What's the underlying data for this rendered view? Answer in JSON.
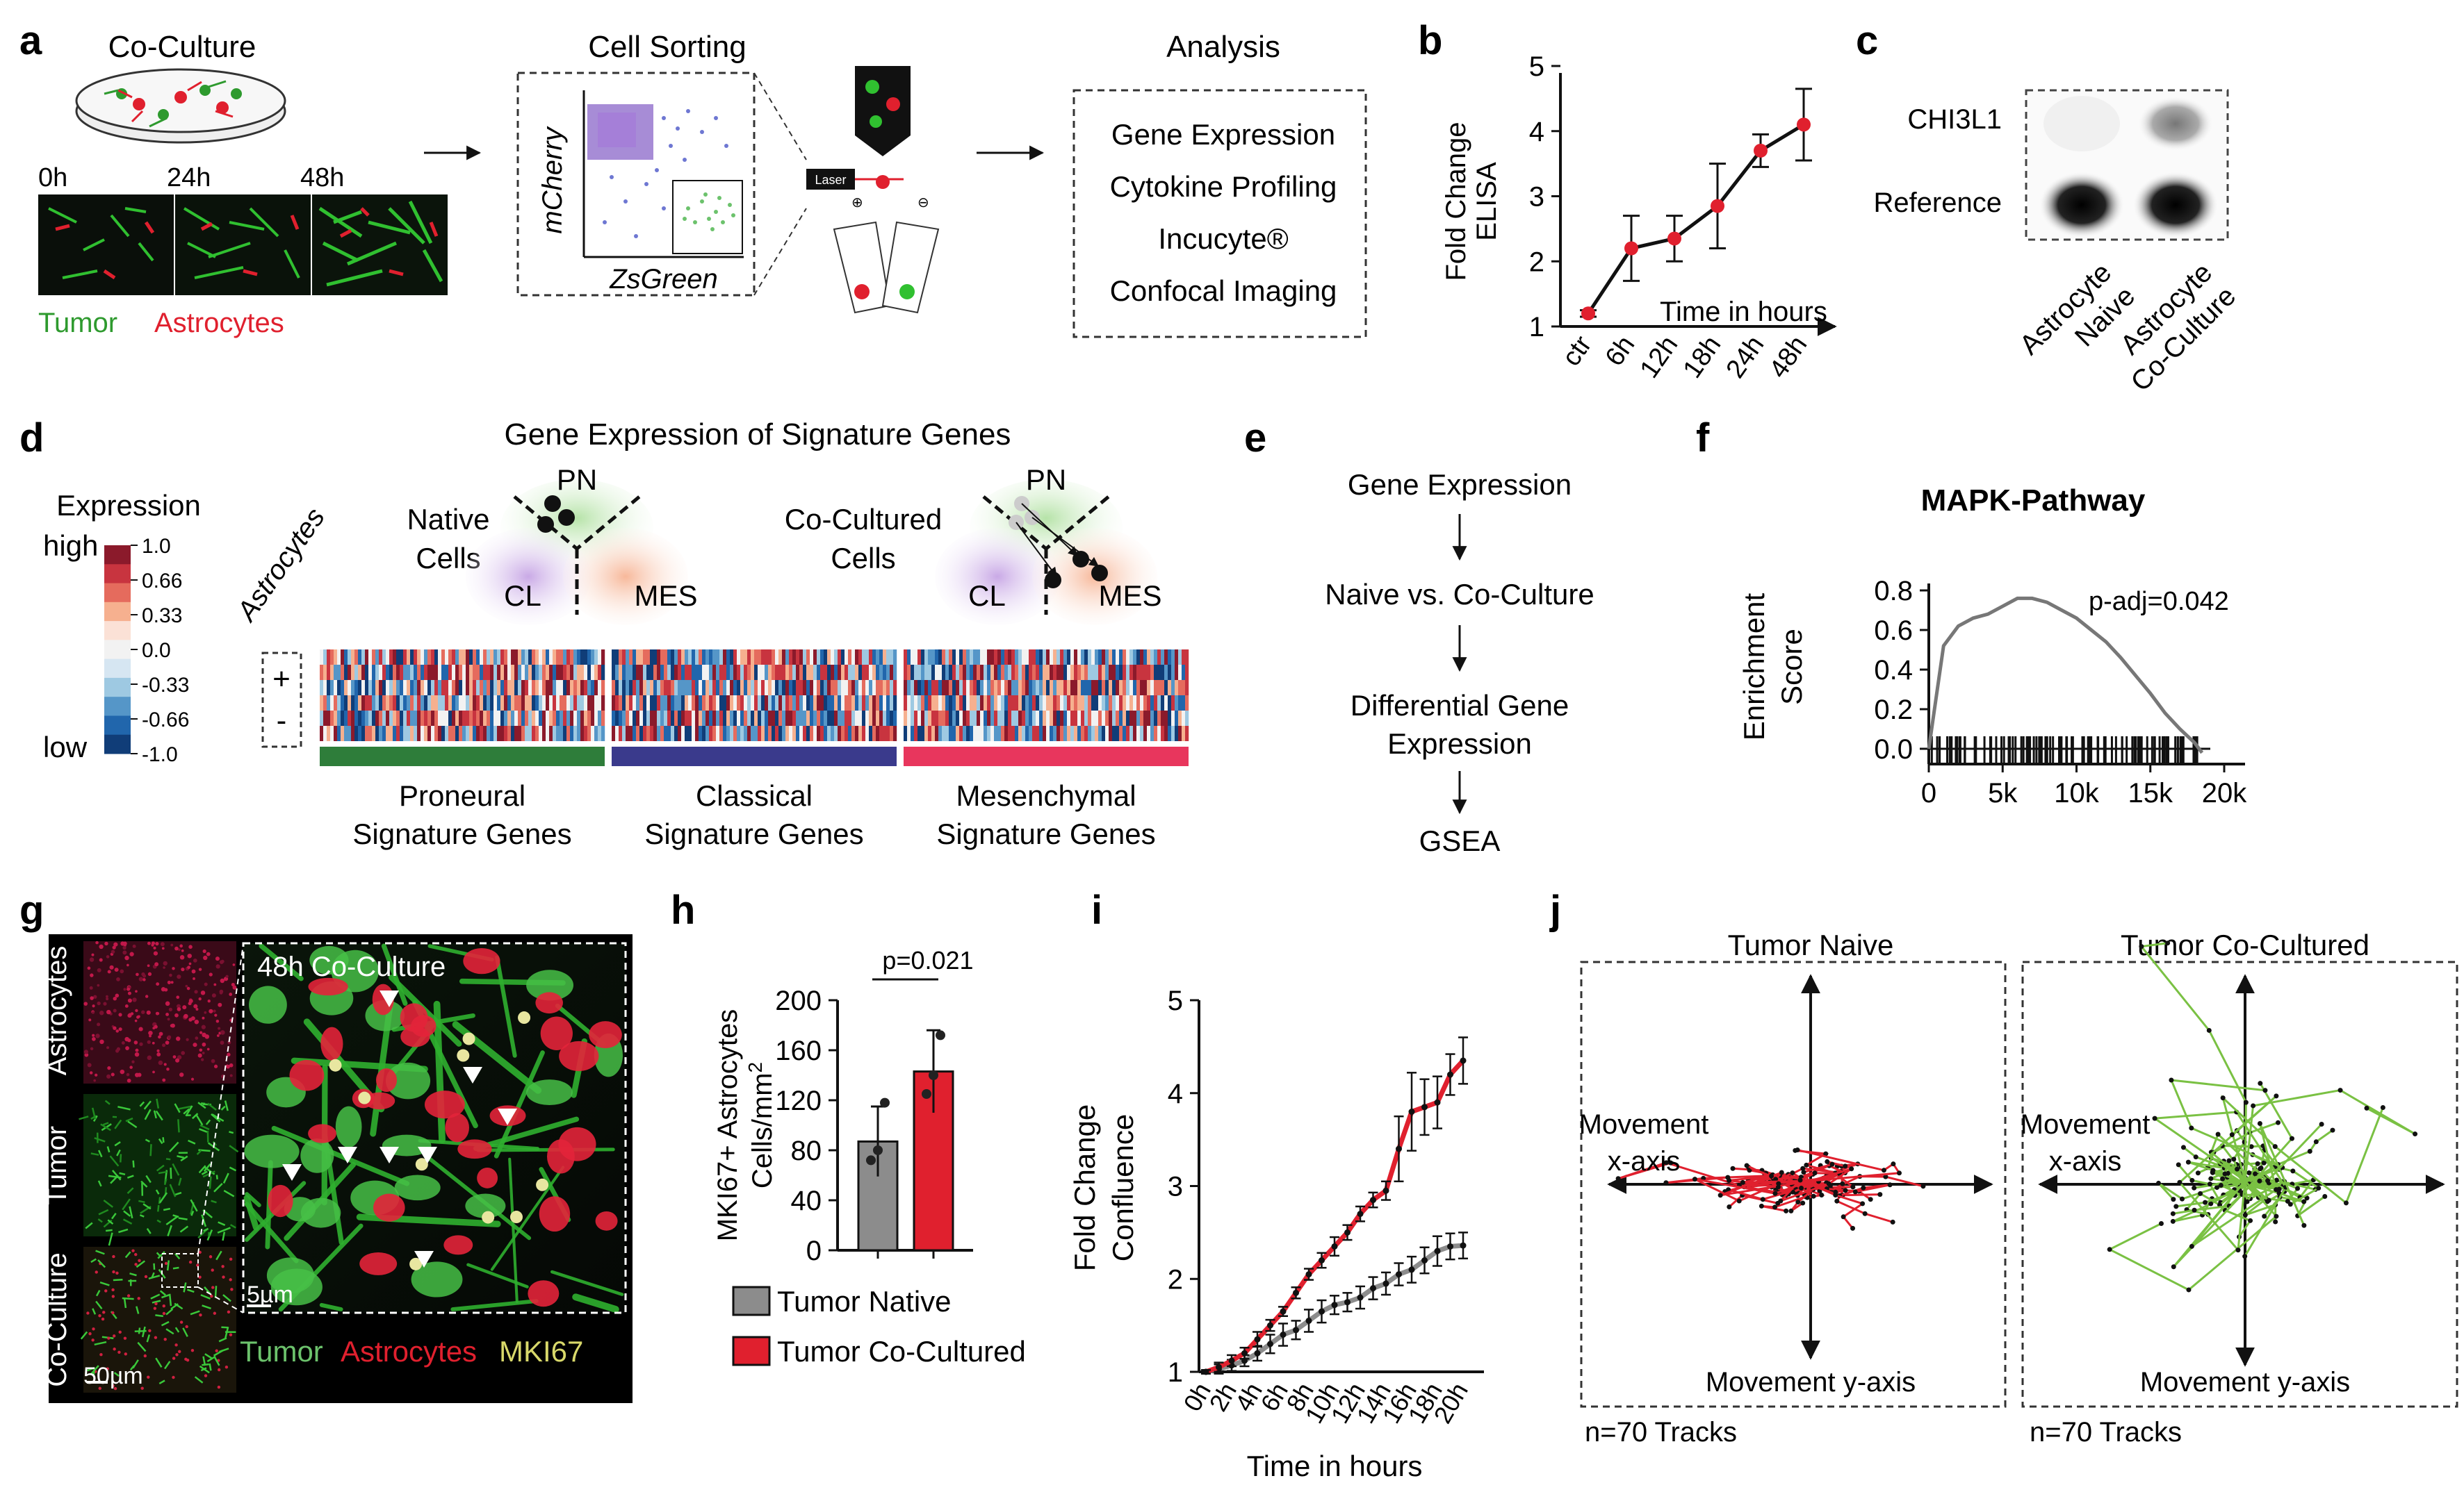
{
  "panel_letters": [
    "a",
    "b",
    "c",
    "d",
    "e",
    "f",
    "g",
    "h",
    "i",
    "j"
  ],
  "panel_a": {
    "coculture_label": "Co-Culture",
    "timepoints": [
      "0h",
      "24h",
      "48h"
    ],
    "legend_tumor": "Tumor",
    "legend_astro": "Astrocytes",
    "sorting_title": "Cell Sorting",
    "facs_y": "mCherry",
    "facs_x": "ZsGreen",
    "laser_label": "Laser",
    "analysis_title": "Analysis",
    "analysis_items": [
      "Gene Expression",
      "Cytokine Profiling",
      "Incucyte®",
      "Confocal Imaging"
    ]
  },
  "panel_b": {
    "ylabel_line1": "Fold Change",
    "ylabel_line2": "ELISA",
    "xlabel": "Time in hours",
    "y_ticks": [
      "1",
      "2",
      "3",
      "4",
      "5"
    ],
    "x_ticks": [
      "ctr",
      "6h",
      "12h",
      "18h",
      "24h",
      "48h"
    ]
  },
  "panel_c": {
    "row_labels": [
      "CHI3L1",
      "Reference"
    ],
    "col_labels_1": [
      "Astrocyte",
      "Naive"
    ],
    "col_labels_2": [
      "Astrocyte",
      "Co-Culture"
    ]
  },
  "panel_d": {
    "title": "Gene Expression of Signature Genes",
    "legend_title": "Expression",
    "legend_high": "high",
    "legend_low": "low",
    "legend_ticks": [
      "1.0",
      "0.66",
      "0.33",
      "0.0",
      "-0.33",
      "-0.66",
      "-1.0"
    ],
    "legend_colors": [
      "#8b1a2b",
      "#c8343f",
      "#e56b5d",
      "#f6b08f",
      "#fbe1d6",
      "#f2f2f2",
      "#d6e6f2",
      "#9ec9e2",
      "#5596c8",
      "#2166ac",
      "#103d78"
    ],
    "astro_label": "Astrocytes",
    "plus": "+",
    "minus": "-",
    "native_l1": "Native",
    "native_l2": "Cells",
    "cocult_l1": "Co-Cultured",
    "cocult_l2": "Cells",
    "pn": "PN",
    "cl": "CL",
    "mes": "MES",
    "groups": [
      {
        "l1": "Proneural",
        "l2": "Signature Genes",
        "color": "#2e7d3a"
      },
      {
        "l1": "Classical",
        "l2": "Signature Genes",
        "color": "#3a3a8c"
      },
      {
        "l1": "Mesenchymal",
        "l2": "Signature Genes",
        "color": "#e8365d"
      }
    ]
  },
  "panel_e": {
    "steps": [
      "Gene Expression",
      "Naive vs. Co-Culture",
      "Differential Gene",
      "Expression",
      "GSEA"
    ]
  },
  "panel_f": {
    "title": "MAPK-Pathway",
    "ylabel_line1": "Enrichment",
    "ylabel_line2": "Score",
    "annotation": "p-adj=0.042",
    "y_ticks": [
      "0.8",
      "0.6",
      "0.4",
      "0.2",
      "0.0"
    ],
    "x_ticks": [
      "0",
      "5k",
      "10k",
      "15k",
      "20k"
    ]
  },
  "panel_g": {
    "rows": [
      "Astrocytes",
      "Tumor",
      "Co-Culture"
    ],
    "inset_label": "48h Co-Culture",
    "scale_inset": "5µm",
    "scale_main": "50µm",
    "legend": [
      "Tumor",
      "Astrocytes",
      "MKI67"
    ]
  },
  "panel_h": {
    "ylabel_line1": "MKI67+ Astrocytes",
    "ylabel_line2": "Cells/mm",
    "ylabel_sup": "2",
    "pvalue": "p=0.021",
    "y_ticks": [
      "0",
      "40",
      "80",
      "120",
      "160",
      "200"
    ],
    "legend": [
      "Tumor Native",
      "Tumor Co-Cultured"
    ]
  },
  "panel_i": {
    "ylabel_line1": "Fold Change",
    "ylabel_line2": "Confluence",
    "xlabel": "Time in hours",
    "y_ticks": [
      "1",
      "2",
      "3",
      "4",
      "5"
    ],
    "x_ticks": [
      "0h",
      "2h",
      "4h",
      "6h",
      "8h",
      "10h",
      "12h",
      "14h",
      "16h",
      "18h",
      "20h"
    ]
  },
  "panel_j": {
    "titles": [
      "Tumor Naive",
      "Tumor Co-Cultured"
    ],
    "x_axis_l1": "Movement",
    "x_axis_l2": "x-axis",
    "y_axis": "Movement y-axis",
    "tracks": "n=70 Tracks"
  },
  "colors": {
    "green": "#2e9a2e",
    "red": "#e0202e",
    "track_green": "#7ac143",
    "gray": "#8c8c8c"
  },
  "chart_data": [
    {
      "type": "line",
      "panel": "b",
      "x": [
        "ctr",
        "6h",
        "12h",
        "18h",
        "24h",
        "48h"
      ],
      "series": [
        {
          "values": [
            1.2,
            2.2,
            2.35,
            2.85,
            3.7,
            4.1
          ],
          "errors": [
            0.05,
            0.5,
            0.35,
            0.65,
            0.25,
            0.55
          ]
        }
      ],
      "ylim": [
        1,
        5
      ]
    },
    {
      "type": "line",
      "panel": "f",
      "x": [
        0,
        1000,
        2000,
        3000,
        4000,
        5000,
        6000,
        7000,
        8000,
        9000,
        10000,
        11000,
        12000,
        13000,
        14000,
        15000,
        16000,
        17000,
        18000,
        18500
      ],
      "series": [
        {
          "values": [
            0.0,
            0.52,
            0.62,
            0.66,
            0.68,
            0.72,
            0.76,
            0.76,
            0.74,
            0.7,
            0.66,
            0.6,
            0.54,
            0.46,
            0.37,
            0.28,
            0.18,
            0.1,
            0.03,
            -0.02
          ]
        }
      ],
      "ylim": [
        0,
        0.8
      ],
      "xlim": [
        0,
        20000
      ]
    },
    {
      "type": "bar",
      "panel": "h",
      "categories": [
        "Tumor Native",
        "Tumor Co-Cultured"
      ],
      "values": [
        87,
        143
      ],
      "errors": [
        28,
        33
      ],
      "points": [
        [
          72,
          80,
          118
        ],
        [
          125,
          140,
          172
        ]
      ],
      "ylim": [
        0,
        200
      ]
    },
    {
      "type": "line",
      "panel": "i",
      "x": [
        "0h",
        "1h",
        "2h",
        "3h",
        "4h",
        "5h",
        "6h",
        "7h",
        "8h",
        "9h",
        "10h",
        "11h",
        "12h",
        "13h",
        "14h",
        "15h",
        "16h",
        "17h",
        "18h",
        "19h",
        "20h"
      ],
      "series": [
        {
          "name": "Tumor Native",
          "values": [
            1.0,
            1.03,
            1.07,
            1.12,
            1.2,
            1.3,
            1.4,
            1.45,
            1.55,
            1.65,
            1.72,
            1.75,
            1.8,
            1.9,
            1.95,
            2.05,
            2.1,
            2.2,
            2.3,
            2.35,
            2.36
          ],
          "errors": [
            0.02,
            0.05,
            0.06,
            0.06,
            0.08,
            0.1,
            0.12,
            0.1,
            0.12,
            0.12,
            0.1,
            0.1,
            0.12,
            0.12,
            0.12,
            0.12,
            0.14,
            0.14,
            0.16,
            0.14,
            0.14
          ]
        },
        {
          "name": "Tumor Co-Cultured",
          "values": [
            1.0,
            1.05,
            1.12,
            1.2,
            1.35,
            1.5,
            1.65,
            1.85,
            2.05,
            2.2,
            2.35,
            2.5,
            2.7,
            2.85,
            2.95,
            3.4,
            3.8,
            3.85,
            3.9,
            4.2,
            4.35
          ],
          "errors": [
            0.02,
            0.05,
            0.06,
            0.06,
            0.08,
            0.06,
            0.05,
            0.06,
            0.06,
            0.08,
            0.1,
            0.08,
            0.08,
            0.08,
            0.1,
            0.35,
            0.42,
            0.3,
            0.28,
            0.22,
            0.25
          ]
        }
      ],
      "ylim": [
        1,
        5
      ]
    }
  ]
}
